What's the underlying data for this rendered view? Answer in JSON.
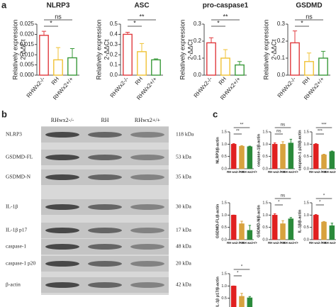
{
  "panel_labels": [
    "a",
    "b",
    "c"
  ],
  "chart_data": [
    {
      "type": "bar",
      "bar_style": "outline",
      "title": "NLRP3",
      "y_label": [
        "Relatively expression",
        "2-ΔΔCt"
      ],
      "categories": [
        "RHWx2-/-",
        "RH",
        "RHWx2+/+"
      ],
      "values": [
        0.0195,
        0.0075,
        0.0085
      ],
      "errors": [
        0.002,
        0.006,
        0.0045
      ],
      "colors": [
        "#e03a3e",
        "#f0c234",
        "#3a9a3a"
      ],
      "ylim": [
        0,
        0.025
      ],
      "yticks": [
        {
          "value": 0,
          "label": "0.000"
        },
        0.005,
        {
          "value": 0.01,
          "label": "0.010"
        },
        0.015,
        {
          "value": 0.02,
          "label": "0.020"
        },
        0.025
      ],
      "significance": [
        "*",
        "ns"
      ]
    },
    {
      "type": "bar",
      "bar_style": "outline",
      "title": "ASC",
      "y_label": [
        "Relatively expression",
        "2-ΔΔCt"
      ],
      "categories": [
        "RHWx2-/-",
        "RH",
        "RHWx2+/+"
      ],
      "values": [
        0.4,
        0.23,
        0.15
      ],
      "errors": [
        0.02,
        0.08,
        0.01
      ],
      "colors": [
        "#e03a3e",
        "#f0c234",
        "#3a9a3a"
      ],
      "ylim": [
        0,
        0.5
      ],
      "yticks": [
        {
          "value": 0,
          "label": "0.0"
        },
        0.1,
        0.2,
        0.3,
        0.4,
        0.5
      ],
      "significance": [
        "*",
        "**"
      ]
    },
    {
      "type": "bar",
      "bar_style": "outline",
      "title": "pro-caspase1",
      "y_label": [
        "Relatively expression",
        "2-ΔΔCt"
      ],
      "categories": [
        "RHWx2-/-",
        "RH",
        "RHWx2+/+"
      ],
      "values": [
        0.19,
        0.1,
        0.06
      ],
      "errors": [
        0.03,
        0.05,
        0.02
      ],
      "colors": [
        "#e03a3e",
        "#f0c234",
        "#3a9a3a"
      ],
      "ylim": [
        0,
        0.3
      ],
      "yticks": [
        {
          "value": 0,
          "label": "0.0"
        },
        0.1,
        0.2,
        0.3
      ],
      "significance": [
        "*",
        "**"
      ]
    },
    {
      "type": "bar",
      "bar_style": "outline",
      "title": "GSDMD",
      "y_label": [
        "Relatively expression",
        "2-ΔΔCt"
      ],
      "categories": [
        "RHWx2-/-",
        "RH",
        "RHWx2+/+"
      ],
      "values": [
        0.19,
        0.08,
        0.1
      ],
      "errors": [
        0.07,
        0.05,
        0.04
      ],
      "colors": [
        "#e03a3e",
        "#f0c234",
        "#3a9a3a"
      ],
      "ylim": [
        0,
        0.3
      ],
      "yticks": [
        {
          "value": 0,
          "label": "0.0"
        },
        0.1,
        0.2,
        0.3
      ],
      "significance": [
        "*",
        "ns"
      ]
    },
    {
      "type": "bar",
      "bar_style": "filled",
      "y_label": "NLRP3/β-actin",
      "categories": [
        "RH wx2-/-",
        "RH",
        "RH wx2+/+"
      ],
      "values": [
        1.0,
        0.92,
        0.9
      ],
      "errors": [
        0.02,
        0.02,
        0.02
      ],
      "colors": [
        "#e02020",
        "#d8a23e",
        "#2a8a3a"
      ],
      "ylim": [
        0,
        1.5
      ],
      "yticks": [
        {
          "value": 0,
          "label": "0.0"
        },
        0.5,
        {
          "value": 1,
          "label": "1.0"
        },
        1.5
      ],
      "significance": [
        "**",
        "**"
      ]
    },
    {
      "type": "bar",
      "bar_style": "filled",
      "y_label": "caspase-1/β-actin",
      "categories": [
        "RH wx2-/-",
        "RH",
        "RH wx2+/+"
      ],
      "values": [
        1.0,
        1.0,
        1.05
      ],
      "errors": [
        0.05,
        0.1,
        0.15
      ],
      "colors": [
        "#e02020",
        "#d8a23e",
        "#2a8a3a"
      ],
      "ylim": [
        0,
        1.5
      ],
      "yticks": [
        {
          "value": 0,
          "label": "0.0"
        },
        0.5,
        {
          "value": 1,
          "label": "1.0"
        },
        1.5
      ],
      "significance": [
        "ns",
        "ns"
      ]
    },
    {
      "type": "bar",
      "bar_style": "filled",
      "y_label": "caspase-1 p20/β-actin",
      "categories": [
        "RH wx2-/-",
        "RH",
        "RH wx2+/+"
      ],
      "values": [
        1.0,
        0.57,
        0.7
      ],
      "errors": [
        0.02,
        0.02,
        0.02
      ],
      "colors": [
        "#e02020",
        "#d8a23e",
        "#2a8a3a"
      ],
      "ylim": [
        0,
        1.5
      ],
      "yticks": [
        {
          "value": 0,
          "label": "0.0"
        },
        0.5,
        {
          "value": 1,
          "label": "1.0"
        },
        1.5
      ],
      "significance": [
        "***",
        "***"
      ]
    },
    {
      "type": "bar",
      "bar_style": "filled",
      "y_label": "GSDMD-FL/β-actin",
      "categories": [
        "RH wx2-/-",
        "RH",
        "RH wx2+/+"
      ],
      "values": [
        1.0,
        0.65,
        0.38
      ],
      "errors": [
        0.0,
        0.1,
        0.2
      ],
      "colors": [
        "#e02020",
        "#d8a23e",
        "#2a8a3a"
      ],
      "ylim": [
        0,
        1.5
      ],
      "yticks": [
        {
          "value": 0,
          "label": "0.0"
        },
        0.5,
        {
          "value": 1,
          "label": "1.0"
        },
        1.5
      ],
      "significance": []
    },
    {
      "type": "bar",
      "bar_style": "filled",
      "y_label": "GSDMD-N/β-actin",
      "categories": [
        "RH wx2-/-",
        "RH",
        "RH wx2+/+"
      ],
      "values": [
        1.0,
        0.65,
        0.85
      ],
      "errors": [
        0.05,
        0.12,
        0.05
      ],
      "colors": [
        "#e02020",
        "#d8a23e",
        "#2a8a3a"
      ],
      "ylim": [
        0,
        1.5
      ],
      "yticks": [
        {
          "value": 0,
          "label": "0.0"
        },
        0.5,
        {
          "value": 1,
          "label": "1.0"
        },
        1.5
      ],
      "significance": [
        "*",
        "ns"
      ]
    },
    {
      "type": "bar",
      "bar_style": "filled",
      "y_label": "IL-1β/β-actin",
      "categories": [
        "RH wx2-/-",
        "RH",
        "RH wx2+/+"
      ],
      "values": [
        1.0,
        0.72,
        0.57
      ],
      "errors": [
        0.02,
        0.02,
        0.1
      ],
      "colors": [
        "#e02020",
        "#d8a23e",
        "#2a8a3a"
      ],
      "ylim": [
        0,
        1.5
      ],
      "yticks": [
        {
          "value": 0,
          "label": "0.0"
        },
        0.5,
        {
          "value": 1,
          "label": "1.0"
        },
        1.5
      ],
      "significance": [
        "*",
        "*"
      ]
    },
    {
      "type": "bar",
      "bar_style": "filled",
      "y_label": "IL-1β p17/β-actin",
      "categories": [
        "RH wx2-/-",
        "RH",
        "RH wx2+/+"
      ],
      "values": [
        1.0,
        0.58,
        0.52
      ],
      "errors": [
        0.0,
        0.12,
        0.05
      ],
      "colors": [
        "#e02020",
        "#d8a23e",
        "#2a8a3a"
      ],
      "ylim": [
        0,
        1.5
      ],
      "yticks": [
        {
          "value": 0,
          "label": "0.0"
        },
        0.5,
        {
          "value": 1,
          "label": "1.0"
        },
        1.5
      ],
      "significance": [
        "*",
        "*"
      ]
    }
  ],
  "blot": {
    "lanes": [
      "RHwx2-/-",
      "RH",
      "RHwx2+/+"
    ],
    "rows": [
      {
        "name": "NLRP3",
        "size": "118 kDa"
      },
      {
        "name": "GSDMD-FL",
        "size": "53 kDa"
      },
      {
        "name": "GSDMD-N",
        "size": "35 kDa"
      },
      {
        "name": "IL-1β",
        "size": "30 kDa"
      },
      {
        "name": "IL-1β p17",
        "size": "17 kDa"
      },
      {
        "name": "caspase-1",
        "size": "48 kDa"
      },
      {
        "name": "caspase-1 p20",
        "size": "20 kDa"
      },
      {
        "name": "β-actin",
        "size": "42 kDa"
      }
    ]
  }
}
